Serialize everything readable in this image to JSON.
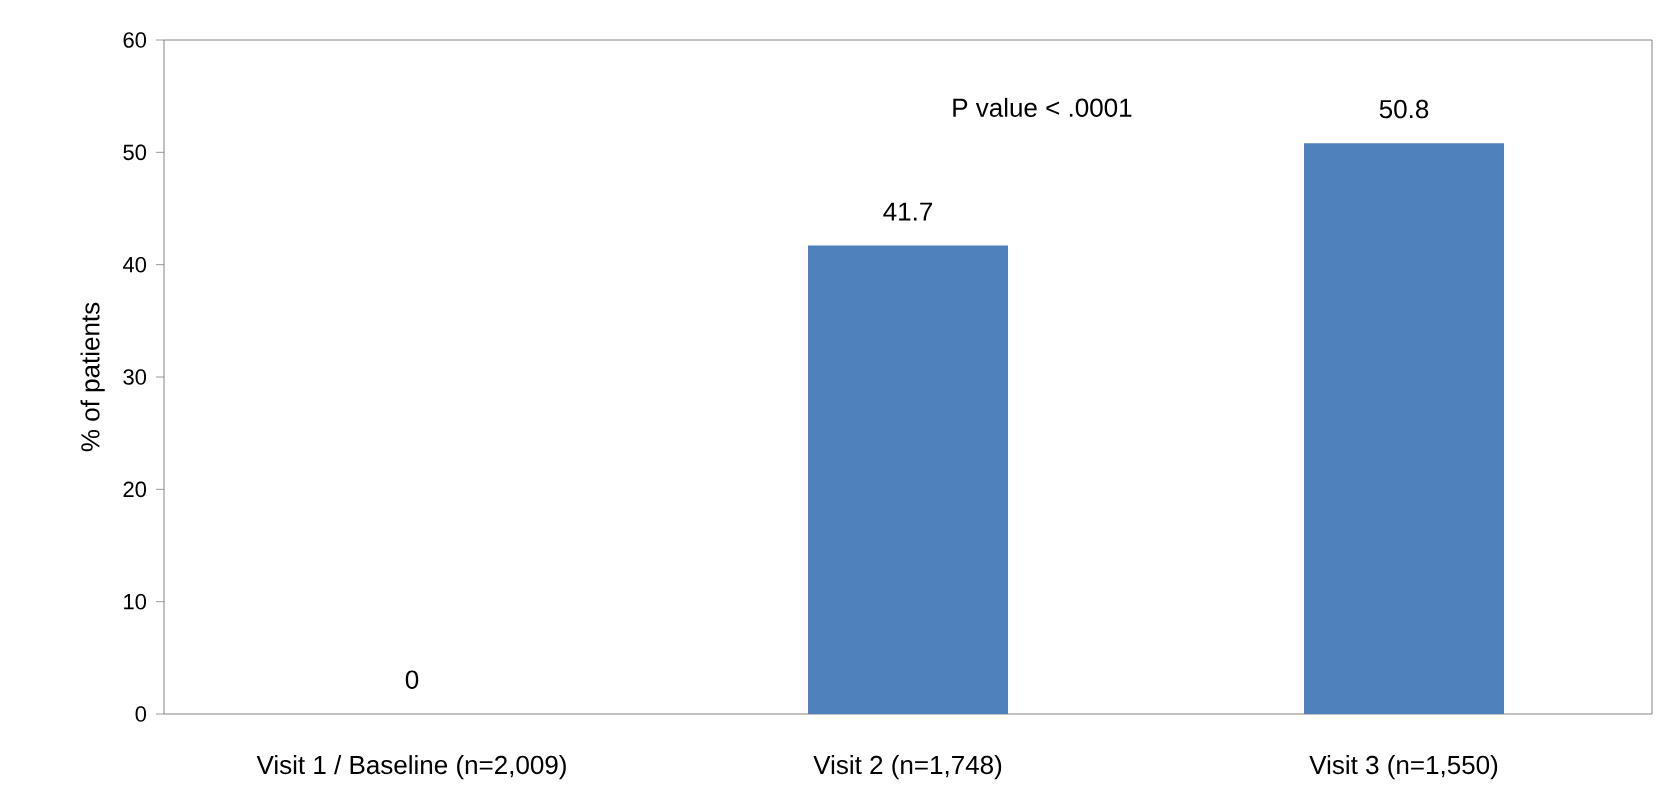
{
  "chart_data": {
    "type": "bar",
    "ylabel": "% of patients",
    "categories": [
      "Visit 1 / Baseline (n=2,009)",
      "Visit 2 (n=1,748)",
      "Visit 3 (n=1,550)"
    ],
    "values": [
      0,
      41.7,
      50.8
    ],
    "color": "#4f81bd",
    "ylim": [
      0,
      60
    ],
    "yticks": [
      0,
      10,
      20,
      30,
      40,
      50,
      60
    ],
    "data_labels": true,
    "annotations": [
      "P value < .0001"
    ]
  }
}
